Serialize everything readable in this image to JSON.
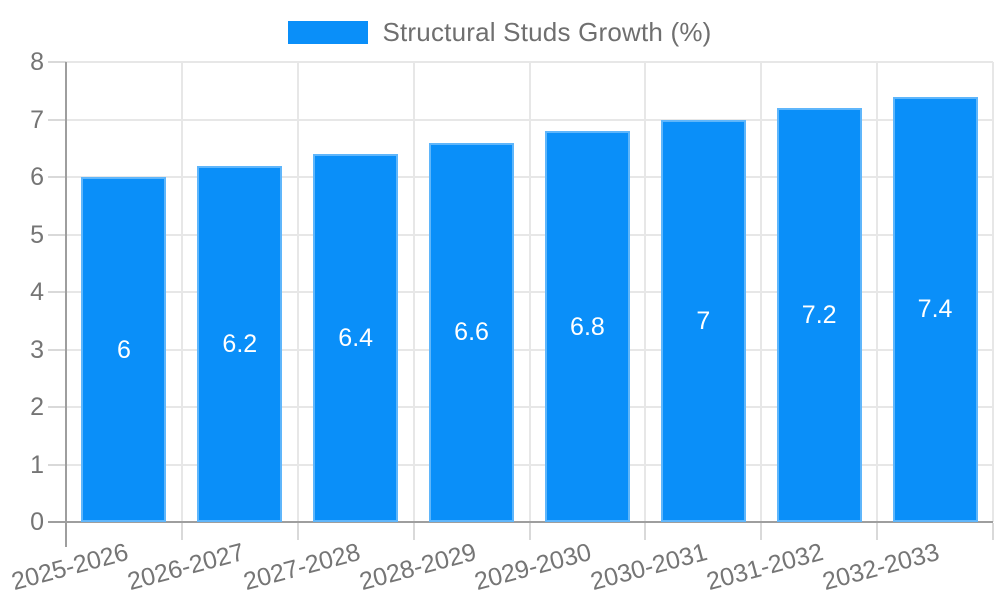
{
  "legend": {
    "label": "Structural Studs Growth (%)"
  },
  "colors": {
    "bar": "#0a8ff9",
    "bar_edge": "rgba(255,255,255,0.35)",
    "grid": "#e7e7e7",
    "tick": "#d9d9d9",
    "axis": "#9e9e9e",
    "text": "#757575",
    "bar_label": "#ffffff"
  },
  "chart_data": {
    "type": "bar",
    "title": "",
    "xlabel": "",
    "ylabel": "",
    "categories": [
      "2025-2026",
      "2026-2027",
      "2027-2028",
      "2028-2029",
      "2029-2030",
      "2030-2031",
      "2031-2032",
      "2032-2033"
    ],
    "series": [
      {
        "name": "Structural Studs Growth (%)",
        "values": [
          6,
          6.2,
          6.4,
          6.6,
          6.8,
          7,
          7.2,
          7.4
        ]
      }
    ],
    "value_labels": [
      "6",
      "6.2",
      "6.4",
      "6.6",
      "6.8",
      "7",
      "7.2",
      "7.4"
    ],
    "ylim": [
      0,
      8
    ],
    "yticks": [
      0,
      1,
      2,
      3,
      4,
      5,
      6,
      7,
      8
    ],
    "grid": true,
    "legend_position": "top-center",
    "x_label_rotation_deg": -15
  }
}
